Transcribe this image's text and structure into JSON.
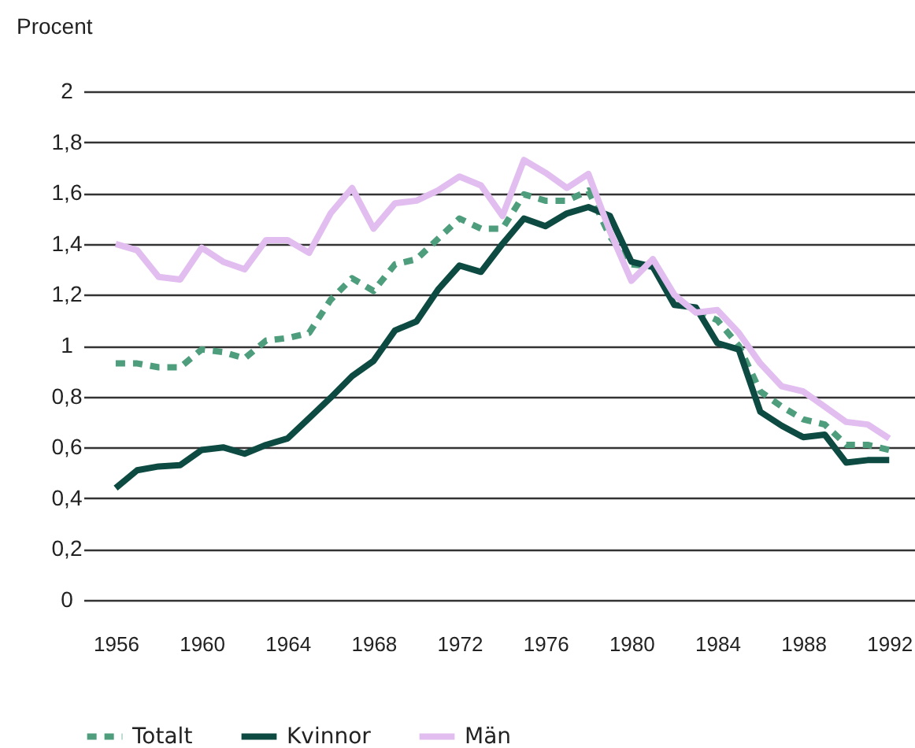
{
  "chart_data": {
    "type": "line",
    "ylabel": "Procent",
    "x": [
      1956,
      1957,
      1958,
      1959,
      1960,
      1961,
      1962,
      1963,
      1964,
      1965,
      1966,
      1967,
      1968,
      1969,
      1970,
      1971,
      1972,
      1973,
      1974,
      1975,
      1976,
      1977,
      1978,
      1979,
      1980,
      1981,
      1982,
      1983,
      1984,
      1985,
      1986,
      1987,
      1988,
      1989,
      1990,
      1991,
      1992
    ],
    "series": [
      {
        "name": "Totalt",
        "color": "#4e9e7e",
        "line_style": "dashed",
        "values": [
          0.93,
          0.93,
          0.915,
          0.915,
          0.985,
          0.975,
          0.95,
          1.02,
          1.03,
          1.05,
          1.18,
          1.265,
          1.215,
          1.32,
          1.34,
          1.42,
          1.5,
          1.46,
          1.46,
          1.595,
          1.57,
          1.57,
          1.61,
          1.43,
          1.32,
          1.31,
          1.18,
          1.14,
          1.1,
          1.0,
          0.82,
          0.76,
          0.71,
          0.69,
          0.61,
          0.61,
          0.59
        ]
      },
      {
        "name": "Kvinnor",
        "color": "#0d4a42",
        "line_style": "solid",
        "values": [
          0.44,
          0.51,
          0.525,
          0.53,
          0.59,
          0.6,
          0.575,
          0.61,
          0.635,
          0.715,
          0.795,
          0.88,
          0.94,
          1.06,
          1.095,
          1.22,
          1.315,
          1.29,
          1.4,
          1.5,
          1.47,
          1.52,
          1.545,
          1.51,
          1.33,
          1.31,
          1.16,
          1.15,
          1.01,
          0.985,
          0.74,
          0.685,
          0.64,
          0.65,
          0.54,
          0.55,
          0.55
        ]
      },
      {
        "name": "Män",
        "color": "#e2bdf0",
        "line_style": "solid",
        "values": [
          1.4,
          1.375,
          1.27,
          1.26,
          1.385,
          1.33,
          1.3,
          1.415,
          1.415,
          1.365,
          1.52,
          1.62,
          1.46,
          1.56,
          1.57,
          1.61,
          1.665,
          1.63,
          1.51,
          1.73,
          1.68,
          1.62,
          1.675,
          1.45,
          1.255,
          1.34,
          1.2,
          1.13,
          1.14,
          1.05,
          0.93,
          0.84,
          0.82,
          0.76,
          0.7,
          0.69,
          0.635
        ]
      }
    ],
    "xlim": [
      1954.5,
      1993.2
    ],
    "xticks": [
      1956,
      1960,
      1964,
      1968,
      1972,
      1976,
      1980,
      1984,
      1988,
      1992
    ],
    "ylim": [
      0,
      2
    ],
    "yticks": [
      0,
      {
        "value": 0.2,
        "label": "0,2"
      },
      {
        "value": 0.4,
        "label": "0,4"
      },
      {
        "value": 0.6,
        "label": "0,6"
      },
      {
        "value": 0.8,
        "label": "0,8"
      },
      1,
      {
        "value": 1.2,
        "label": "1,2"
      },
      {
        "value": 1.4,
        "label": "1,4"
      },
      {
        "value": 1.6,
        "label": "1,6"
      },
      {
        "value": 1.8,
        "label": "1,8"
      },
      2
    ],
    "grid": "y",
    "legend": "bottom left",
    "marker": "none"
  }
}
